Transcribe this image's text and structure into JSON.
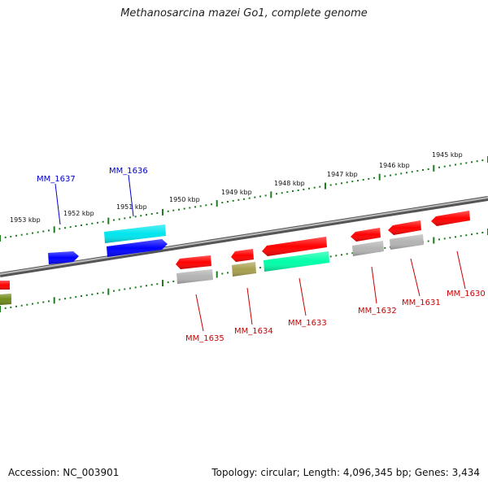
{
  "title": "Methanosarcina mazei Go1, complete genome",
  "footer": {
    "accession": "Accession: NC_003901",
    "summary": "Topology: circular; Length: 4,096,345 bp; Genes: 3,434"
  },
  "ruler": {
    "labels": [
      "1953 kbp",
      "1952 kbp",
      "1951 kbp",
      "1950 kbp",
      "1949 kbp",
      "1948 kbp",
      "1947 kbp",
      "1946 kbp",
      "1945 kbp"
    ]
  },
  "colors": {
    "forward": "#ff0000",
    "reverse_blue": "#0000ff",
    "cyan": "#00e5ee",
    "mint": "#00ffaa",
    "gray": "#b3b3b3",
    "olive": "#a89f4f",
    "dark_olive": "#6e8b1a",
    "backbone": "#808080",
    "ruler": "#1e7d1e"
  },
  "genes": {
    "MM_1637": "MM_1637",
    "MM_1636": "MM_1636",
    "MM_1635": "MM_1635",
    "MM_1634": "MM_1634",
    "MM_1633": "MM_1633",
    "MM_1632": "MM_1632",
    "MM_1631": "MM_1631",
    "MM_1630": "MM_1630"
  }
}
